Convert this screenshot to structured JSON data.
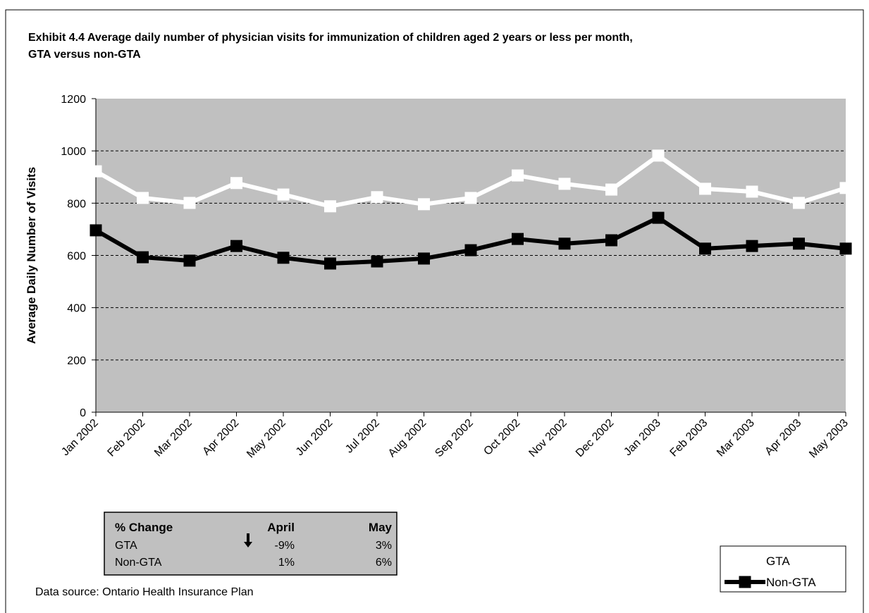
{
  "chart_data": {
    "type": "line",
    "title": "Exhibit 4.4 Average daily number of physician visits for immunization of children aged 2 years or less per month, GTA versus non-GTA",
    "y_label": "Average Daily Number of Visits",
    "categories": [
      "Jan 2002",
      "Feb 2002",
      "Mar 2002",
      "Apr 2002",
      "May 2002",
      "Jun 2002",
      "Jul 2002",
      "Aug 2002",
      "Sep 2002",
      "Oct 2002",
      "Nov 2002",
      "Dec 2002",
      "Jan 2003",
      "Feb 2003",
      "Mar 2003",
      "Apr 2003",
      "May 2003"
    ],
    "series": [
      {
        "name": "GTA",
        "color": "#ffffff",
        "values": [
          922,
          820,
          801,
          877,
          833,
          788,
          823,
          796,
          820,
          906,
          874,
          852,
          982,
          855,
          844,
          801,
          858
        ]
      },
      {
        "name": "Non-GTA",
        "color": "#000000",
        "values": [
          696,
          593,
          580,
          636,
          591,
          569,
          577,
          588,
          620,
          663,
          645,
          658,
          744,
          626,
          636,
          645,
          626
        ]
      }
    ],
    "ylim": [
      0,
      1200
    ],
    "yticks": [
      0,
      200,
      400,
      600,
      800,
      1000,
      1200
    ],
    "grid": true,
    "legend": "bottom-right"
  },
  "change_table": {
    "headers": [
      "% Change",
      "April",
      "May"
    ],
    "rows": [
      [
        "GTA",
        "-9%",
        "3%"
      ],
      [
        "Non-GTA",
        "1%",
        "6%"
      ]
    ]
  },
  "source": "Data source: Ontario Health Insurance Plan"
}
